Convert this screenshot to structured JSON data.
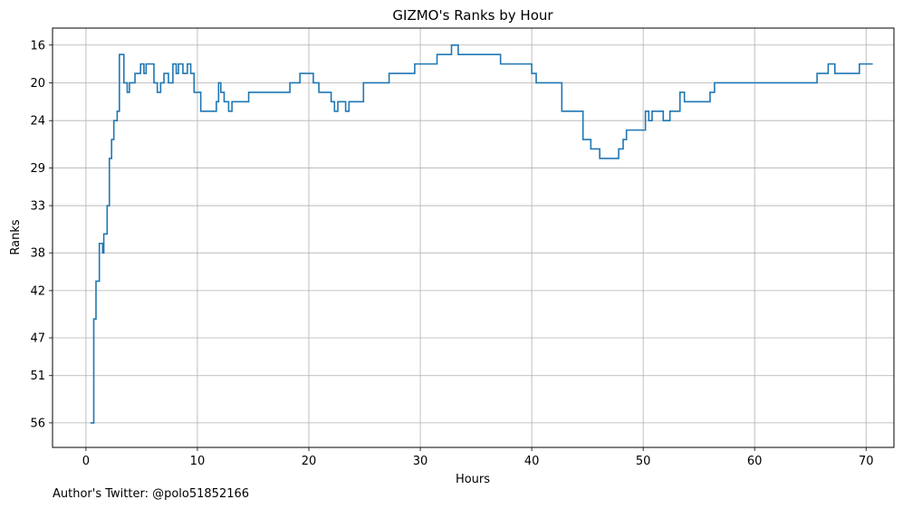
{
  "chart_data": {
    "type": "line",
    "step": true,
    "title": "GIZMO's Ranks by Hour",
    "xlabel": "Hours",
    "ylabel": "Ranks",
    "xlim": [
      -3,
      72.5
    ],
    "ylim": [
      58.6,
      14.2
    ],
    "y_inverted": true,
    "grid": true,
    "xticks": [
      0,
      10,
      20,
      30,
      40,
      50,
      60,
      70
    ],
    "yticks": [
      16,
      20,
      24,
      29,
      33,
      38,
      42,
      47,
      51,
      56
    ],
    "series": [
      {
        "color": "#1f77b4",
        "points": [
          [
            0.4,
            56
          ],
          [
            0.7,
            45
          ],
          [
            0.9,
            41
          ],
          [
            1.2,
            37
          ],
          [
            1.5,
            38
          ],
          [
            1.6,
            36
          ],
          [
            1.9,
            33
          ],
          [
            2.1,
            28
          ],
          [
            2.3,
            26
          ],
          [
            2.5,
            24
          ],
          [
            2.8,
            23
          ],
          [
            3.0,
            17
          ],
          [
            3.4,
            20
          ],
          [
            3.7,
            21
          ],
          [
            3.9,
            20
          ],
          [
            4.4,
            19
          ],
          [
            4.9,
            18
          ],
          [
            5.2,
            19
          ],
          [
            5.4,
            18
          ],
          [
            6.1,
            20
          ],
          [
            6.4,
            21
          ],
          [
            6.7,
            20
          ],
          [
            7.0,
            19
          ],
          [
            7.4,
            20
          ],
          [
            7.8,
            18
          ],
          [
            8.1,
            19
          ],
          [
            8.3,
            18
          ],
          [
            8.7,
            19
          ],
          [
            9.1,
            18
          ],
          [
            9.4,
            19
          ],
          [
            9.7,
            21
          ],
          [
            10.3,
            23
          ],
          [
            11.7,
            22
          ],
          [
            11.9,
            20
          ],
          [
            12.1,
            21
          ],
          [
            12.4,
            22
          ],
          [
            12.8,
            23
          ],
          [
            13.1,
            22
          ],
          [
            14.6,
            21
          ],
          [
            18.3,
            20
          ],
          [
            19.2,
            19
          ],
          [
            20.4,
            20
          ],
          [
            20.9,
            21
          ],
          [
            22.0,
            22
          ],
          [
            22.3,
            23
          ],
          [
            22.6,
            22
          ],
          [
            23.3,
            23
          ],
          [
            23.6,
            22
          ],
          [
            24.9,
            20
          ],
          [
            27.2,
            19
          ],
          [
            29.5,
            18
          ],
          [
            31.5,
            17
          ],
          [
            32.8,
            16
          ],
          [
            33.4,
            17
          ],
          [
            37.2,
            18
          ],
          [
            40.0,
            19
          ],
          [
            40.4,
            20
          ],
          [
            42.7,
            23
          ],
          [
            44.6,
            26
          ],
          [
            45.3,
            27
          ],
          [
            46.1,
            28
          ],
          [
            47.8,
            27
          ],
          [
            48.2,
            26
          ],
          [
            48.5,
            25
          ],
          [
            50.2,
            23
          ],
          [
            50.5,
            24
          ],
          [
            50.8,
            23
          ],
          [
            51.8,
            24
          ],
          [
            52.4,
            23
          ],
          [
            53.3,
            21
          ],
          [
            53.7,
            22
          ],
          [
            56.0,
            21
          ],
          [
            56.4,
            20
          ],
          [
            65.6,
            19
          ],
          [
            66.6,
            18
          ],
          [
            67.2,
            19
          ],
          [
            69.4,
            18
          ],
          [
            70.6,
            18
          ]
        ]
      }
    ]
  },
  "footnote": "Author's Twitter: @polo51852166"
}
